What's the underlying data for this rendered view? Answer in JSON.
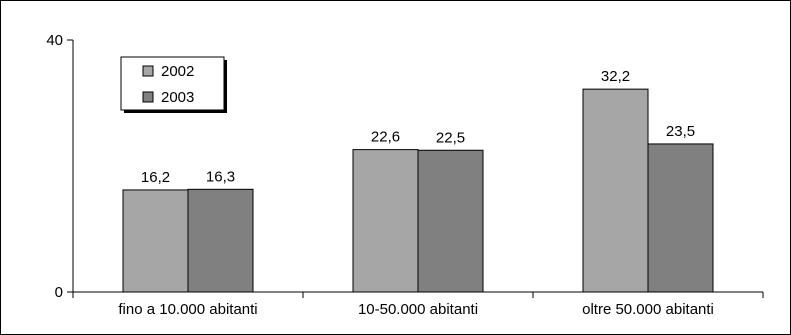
{
  "chart_data": {
    "type": "bar",
    "categories": [
      "fino a 10.000 abitanti",
      "10-50.000 abitanti",
      "oltre 50.000 abitanti"
    ],
    "series": [
      {
        "name": "2002",
        "values": [
          16.2,
          22.6,
          32.2
        ],
        "labels": [
          "16,2",
          "22,6",
          "32,2"
        ],
        "color": "#a6a6a6"
      },
      {
        "name": "2003",
        "values": [
          16.3,
          22.5,
          23.5
        ],
        "labels": [
          "16,3",
          "22,5",
          "23,5"
        ],
        "color": "#808080"
      }
    ],
    "ylim": [
      0,
      40
    ],
    "y_ticks": [
      "0",
      "40"
    ],
    "title": "",
    "xlabel": "",
    "ylabel": "",
    "grid": false,
    "legend_position": "top-left"
  }
}
